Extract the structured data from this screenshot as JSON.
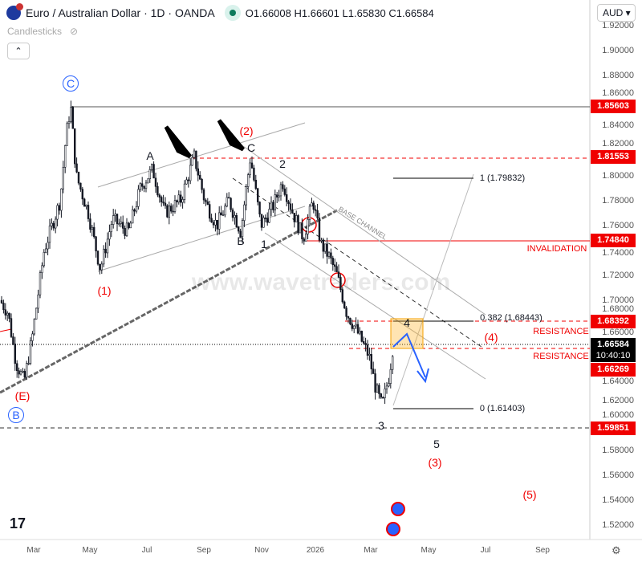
{
  "header": {
    "title": "Euro / Australian Dollar · 1D · OANDA",
    "open": "1.66008",
    "high": "1.66601",
    "low": "1.65830",
    "close": "1.66584",
    "open_label": "O",
    "high_label": "H",
    "low_label": "L",
    "close_label": "C",
    "series_type": "Candlesticks",
    "currency": "AUD"
  },
  "price_axis": [
    "1.92000",
    "1.90000",
    "1.88000",
    "1.86000",
    "1.84000",
    "1.82000",
    "1.80000",
    "1.78000",
    "1.76000",
    "1.74000",
    "1.72000",
    "1.70000",
    "1.68000",
    "1.66000",
    "1.64000",
    "1.62000",
    "1.60000",
    "1.58000",
    "1.56000",
    "1.54000",
    "1.52000"
  ],
  "price_tags": {
    "high": "1.85603",
    "b": "1.81553",
    "invalidation": "1.74840",
    "res1": "1.68392",
    "current": "1.66584",
    "countdown": "10:40:10",
    "res2": "1.66269",
    "low": "1.59851"
  },
  "time_axis": [
    "Mar",
    "May",
    "Jul",
    "Sep",
    "Nov",
    "2026",
    "Mar",
    "May",
    "Jul",
    "Sep"
  ],
  "annotations": {
    "C_circle": "C",
    "B_circle": "B",
    "A": "A",
    "C": "C",
    "B": "B",
    "w1": "1",
    "w2": "2",
    "w3": "3",
    "w4": "4",
    "w5": "5",
    "p1": "(1)",
    "p2": "(2)",
    "p3": "(3)",
    "p4": "(4)",
    "p5": "(5)",
    "pE": "(E)",
    "invalidation": "INVALIDATION",
    "resistance": "RESISTANCE",
    "base_channel": "BASE CHANNEL",
    "fib1": "1 (1.79832)",
    "fib382": "0.382 (1.68443)",
    "fib0": "0 (1.61403)",
    "watermark": "www.wavetraders.com"
  },
  "colors": {
    "red": "#f00000",
    "up": "#131722",
    "accent": "#2962ff"
  }
}
